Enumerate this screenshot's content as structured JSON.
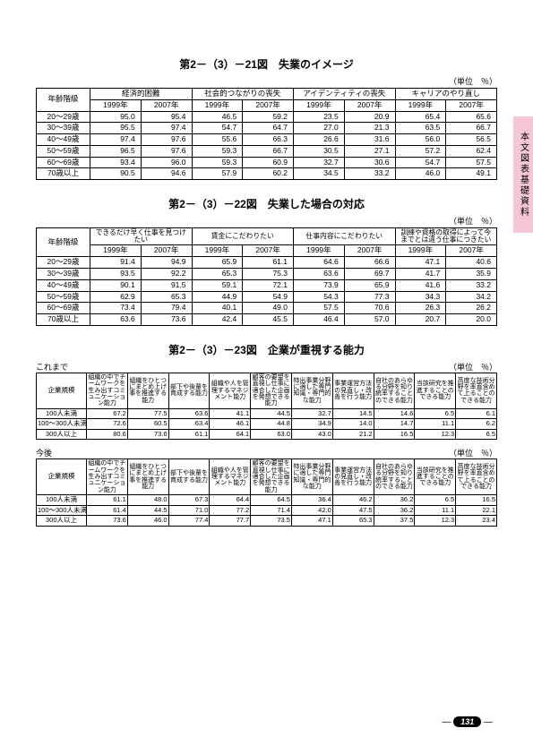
{
  "sideTab": "本文図表基礎資料",
  "pageNumber": "131",
  "unitLabel": "（単位　％）",
  "koremade": "これまで",
  "kongo": "今後",
  "yearLabel": "年齢階級",
  "companyLabel": "企業規模",
  "year1999": "1999年",
  "year2007": "2007年",
  "table21": {
    "title": "第2－（3）－21図　失業のイメージ",
    "groups": [
      "経済的困難",
      "社会的つながりの喪失",
      "アイデンティティの喪失",
      "キャリアのやり直し"
    ],
    "rows": [
      {
        "age": "20～29歳",
        "v": [
          "95.0",
          "95.4",
          "46.5",
          "59.2",
          "23.5",
          "20.9",
          "65.4",
          "65.6"
        ]
      },
      {
        "age": "30～39歳",
        "v": [
          "95.5",
          "97.4",
          "54.7",
          "64.7",
          "27.0",
          "21.3",
          "63.5",
          "66.7"
        ]
      },
      {
        "age": "40～49歳",
        "v": [
          "97.4",
          "97.6",
          "55.6",
          "66.3",
          "26.6",
          "31.6",
          "56.0",
          "56.5"
        ]
      },
      {
        "age": "50～59歳",
        "v": [
          "96.5",
          "97.6",
          "59.3",
          "66.7",
          "30.5",
          "27.1",
          "57.2",
          "62.4"
        ]
      },
      {
        "age": "60～69歳",
        "v": [
          "93.4",
          "96.0",
          "59.3",
          "60.9",
          "32.7",
          "30.6",
          "54.7",
          "57.5"
        ]
      },
      {
        "age": "70歳以上",
        "v": [
          "90.5",
          "94.6",
          "57.9",
          "60.2",
          "34.5",
          "33.2",
          "46.0",
          "49.1"
        ]
      }
    ]
  },
  "table22": {
    "title": "第2－（3）－22図　失業した場合の対応",
    "groups": [
      "できるだけ早く仕事を見つけたい",
      "賃金にこだわりたい",
      "仕事内容にこだわりたい",
      "訓練や資格の取得によって今までとは違う仕事につきたい"
    ],
    "rows": [
      {
        "age": "20～29歳",
        "v": [
          "91.4",
          "94.9",
          "65.9",
          "61.1",
          "64.6",
          "66.6",
          "47.1",
          "40.6"
        ]
      },
      {
        "age": "30～39歳",
        "v": [
          "93.5",
          "92.2",
          "65.3",
          "75.3",
          "63.6",
          "69.7",
          "41.7",
          "35.9"
        ]
      },
      {
        "age": "40～49歳",
        "v": [
          "90.1",
          "91.5",
          "59.1",
          "72.1",
          "73.9",
          "65.9",
          "41.6",
          "33.2"
        ]
      },
      {
        "age": "50～59歳",
        "v": [
          "62.9",
          "65.3",
          "44.9",
          "54.9",
          "54.3",
          "77.3",
          "34.3",
          "34.2"
        ]
      },
      {
        "age": "60～69歳",
        "v": [
          "73.4",
          "79.4",
          "40.1",
          "49.0",
          "57.5",
          "70.6",
          "26.3",
          "26.2"
        ]
      },
      {
        "age": "70歳以上",
        "v": [
          "63.6",
          "73.6",
          "42.4",
          "45.5",
          "46.4",
          "57.0",
          "20.7",
          "20.0"
        ]
      }
    ]
  },
  "table23": {
    "title": "第2－（3）－23図　企業が重視する能力",
    "headers": [
      "組織の中でチームワークを生み出すコミュニケーション能力",
      "組織をひとつにまとめ上げ事を推進する能力",
      "部下や後輩を育成する能力",
      "組織や人を管理するマネジメント能力",
      "顧客の要望を直視し仕事に適合した企画を発想できる能力",
      "特出事業分野に適した専門知識・専門的な能力",
      "事業運営方法の見直し・改善を行う能力",
      "自社のあらゆる分野を知り統率することのできる能力",
      "当該研究を推進することのできる能力",
      "高度な技術分野を率直含めて上ることのできる能力"
    ],
    "sizes": [
      "100人未満",
      "100～300人未満",
      "300人以上"
    ],
    "past": [
      [
        "67.2",
        "77.5",
        "63.6",
        "41.1",
        "44.5",
        "32.7",
        "14.5",
        "14.6",
        "6.5",
        "6.1"
      ],
      [
        "72.6",
        "60.5",
        "63.4",
        "46.1",
        "44.8",
        "34.9",
        "14.0",
        "14.7",
        "11.1",
        "6.2"
      ],
      [
        "80.6",
        "73.6",
        "61.1",
        "64.1",
        "63.0",
        "43.0",
        "21.2",
        "16.5",
        "12.3",
        "6.5"
      ]
    ],
    "future": [
      [
        "61.1",
        "48.0",
        "67.3",
        "64.4",
        "64.5",
        "36.4",
        "46.2",
        "36.2",
        "6.5",
        "16.5"
      ],
      [
        "61.4",
        "44.5",
        "71.0",
        "77.2",
        "71.4",
        "42.0",
        "47.5",
        "36.2",
        "11.1",
        "22.1"
      ],
      [
        "73.6",
        "46.0",
        "77.4",
        "77.7",
        "73.5",
        "47.1",
        "65.3",
        "37.5",
        "12.3",
        "23.4"
      ]
    ]
  }
}
